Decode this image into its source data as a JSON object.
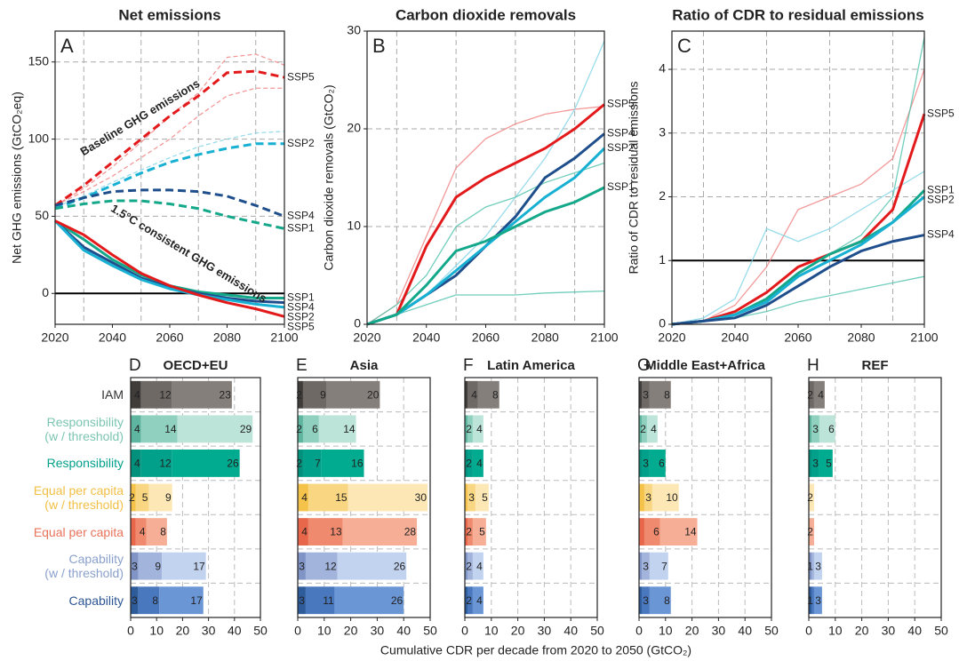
{
  "chart_data": [
    {
      "type": "line",
      "panel": "A",
      "title": "Net emissions",
      "ylabel": "Net GHG emissions (GtCO₂eq)",
      "x": [
        2020,
        2030,
        2040,
        2050,
        2060,
        2070,
        2080,
        2090,
        2100
      ],
      "xlim": [
        2020,
        2100
      ],
      "xticks": [
        2020,
        2040,
        2060,
        2080,
        2100
      ],
      "ylim": [
        -20,
        170
      ],
      "yticks": [
        0,
        50,
        100,
        150
      ],
      "grid": true,
      "hline": 0,
      "annotations": [
        "Baseline GHG emissions",
        "1.5°C consistent GHG emissions"
      ],
      "series": [
        {
          "color": "#f08080",
          "dash": true,
          "thin": true,
          "values": [
            57,
            68,
            82,
            98,
            115,
            130,
            153,
            155,
            148
          ]
        },
        {
          "color": "#f08080",
          "dash": true,
          "thin": true,
          "values": [
            57,
            66,
            76,
            88,
            100,
            115,
            128,
            133,
            133
          ]
        },
        {
          "color": "#7fd3e6",
          "dash": true,
          "thin": true,
          "values": [
            56,
            63,
            72,
            80,
            88,
            95,
            100,
            104,
            105
          ]
        },
        {
          "name": "SSP5",
          "color": "#e31a1c",
          "dash": true,
          "values": [
            57,
            70,
            85,
            100,
            115,
            128,
            143,
            144,
            140
          ]
        },
        {
          "name": "SSP2",
          "color": "#17b0d3",
          "dash": true,
          "values": [
            55,
            62,
            70,
            78,
            85,
            90,
            94,
            97,
            97
          ]
        },
        {
          "name": "SSP4",
          "color": "#1f4e8c",
          "dash": true,
          "values": [
            57,
            62,
            66,
            67,
            67,
            66,
            63,
            57,
            50
          ]
        },
        {
          "name": "SSP1",
          "color": "#14a88a",
          "dash": true,
          "values": [
            55,
            58,
            60,
            60,
            58,
            55,
            50,
            46,
            42
          ]
        },
        {
          "name": "SSP1",
          "color": "#14a88a",
          "values": [
            47,
            35,
            22,
            12,
            5,
            1,
            -1,
            -3,
            -3
          ]
        },
        {
          "name": "SSP4",
          "color": "#1f4e8c",
          "values": [
            47,
            30,
            20,
            10,
            4,
            0,
            -3,
            -5,
            -6
          ]
        },
        {
          "name": "SSP2",
          "color": "#17b0d3",
          "values": [
            47,
            28,
            18,
            9,
            3,
            -1,
            -4,
            -7,
            -9
          ]
        },
        {
          "name": "SSP5",
          "color": "#e31a1c",
          "values": [
            47,
            38,
            25,
            13,
            5,
            -1,
            -6,
            -10,
            -15
          ]
        }
      ]
    },
    {
      "type": "line",
      "panel": "B",
      "title": "Carbon dioxide removals",
      "ylabel": "Carbon dioxide removals (GtCO₂)",
      "x": [
        2020,
        2030,
        2040,
        2050,
        2060,
        2070,
        2080,
        2090,
        2100
      ],
      "xlim": [
        2020,
        2100
      ],
      "xticks": [
        2020,
        2040,
        2060,
        2080,
        2100
      ],
      "ylim": [
        0,
        30
      ],
      "yticks": [
        0,
        10,
        20,
        30
      ],
      "grid": true,
      "series": [
        {
          "color": "#f08080",
          "thin": true,
          "values": [
            0,
            2,
            9,
            16,
            19,
            20.5,
            21.5,
            22,
            22.3
          ]
        },
        {
          "color": "#7fd3e6",
          "thin": true,
          "values": [
            0,
            1,
            3,
            6,
            9,
            13,
            17,
            22,
            29
          ]
        },
        {
          "color": "#4fc2ab",
          "thin": true,
          "values": [
            0,
            1,
            2,
            3,
            3,
            3,
            3.2,
            3.3,
            3.4
          ]
        },
        {
          "color": "#4fc2ab",
          "thin": true,
          "values": [
            0,
            2,
            5,
            10,
            12,
            13,
            14.5,
            15.5,
            16.5
          ]
        },
        {
          "name": "SSP5",
          "color": "#e31a1c",
          "values": [
            0,
            1,
            8,
            13,
            15,
            16.5,
            18,
            20,
            22.5
          ]
        },
        {
          "name": "SSP4",
          "color": "#1f4e8c",
          "values": [
            0,
            1,
            3,
            5,
            8,
            11,
            15,
            17,
            19.5
          ]
        },
        {
          "name": "SSP2",
          "color": "#17b0d3",
          "values": [
            0,
            1,
            3,
            5.5,
            8,
            10.5,
            13,
            15,
            18
          ]
        },
        {
          "name": "SSP1",
          "color": "#14a88a",
          "values": [
            0,
            1,
            4,
            7.5,
            8.5,
            10,
            11.5,
            12.5,
            14
          ]
        }
      ]
    },
    {
      "type": "line",
      "panel": "C",
      "title": "Ratio of CDR to residual emissions",
      "ylabel": "Ratio of CDR to residual emissions",
      "x": [
        2020,
        2030,
        2040,
        2050,
        2060,
        2070,
        2080,
        2090,
        2100
      ],
      "xlim": [
        2020,
        2100
      ],
      "xticks": [
        2020,
        2040,
        2060,
        2080,
        2100
      ],
      "ylim": [
        0,
        4.6
      ],
      "yticks": [
        0,
        1,
        2,
        3,
        4
      ],
      "grid": true,
      "hline": 1,
      "series": [
        {
          "color": "#f08080",
          "thin": true,
          "values": [
            0,
            0.05,
            0.3,
            0.9,
            1.8,
            2.0,
            2.2,
            2.6,
            4.0
          ]
        },
        {
          "color": "#4fc2ab",
          "thin": true,
          "values": [
            0,
            0.05,
            0.2,
            0.5,
            0.9,
            1.1,
            1.4,
            2.0,
            4.5
          ]
        },
        {
          "color": "#4fc2ab",
          "thin": true,
          "values": [
            0,
            0.05,
            0.1,
            0.2,
            0.35,
            0.45,
            0.55,
            0.65,
            0.75
          ]
        },
        {
          "color": "#7fd3e6",
          "thin": true,
          "values": [
            0,
            0.1,
            0.4,
            1.5,
            1.3,
            1.5,
            1.8,
            2.1,
            2.4
          ]
        },
        {
          "name": "SSP5",
          "color": "#e31a1c",
          "values": [
            0,
            0.05,
            0.2,
            0.5,
            0.9,
            1.1,
            1.3,
            1.8,
            3.3
          ]
        },
        {
          "name": "SSP1",
          "color": "#14a88a",
          "values": [
            0,
            0.05,
            0.15,
            0.4,
            0.8,
            1.1,
            1.3,
            1.6,
            2.1
          ]
        },
        {
          "name": "SSP2",
          "color": "#17b0d3",
          "values": [
            0,
            0.05,
            0.15,
            0.35,
            0.75,
            1.0,
            1.25,
            1.6,
            2.0
          ]
        },
        {
          "name": "SSP4",
          "color": "#1f4e8c",
          "values": [
            0,
            0.05,
            0.1,
            0.3,
            0.6,
            0.9,
            1.15,
            1.3,
            1.4
          ]
        }
      ]
    },
    {
      "type": "hbar",
      "panel": "D",
      "title": "OECD+EU",
      "xlim": [
        0,
        50
      ],
      "xticks": [
        0,
        10,
        20,
        30,
        40,
        50
      ],
      "grid": true,
      "categories": [
        "IAM",
        "Responsibility\n(w / threshold)",
        "Responsibility",
        "Equal per capita\n(w / threshold)",
        "Equal per capita",
        "Capability\n(w / threshold)",
        "Capability"
      ],
      "label_colors": [
        "#333333",
        "#7cc5b2",
        "#00a08a",
        "#f2bf45",
        "#e8735a",
        "#8aa0cc",
        "#2c5693"
      ],
      "category_colors": [
        [
          "#3f3c3a",
          "#6f6966",
          "#857f7b"
        ],
        [
          "#5eb5a0",
          "#8fd0bf",
          "#bde4d9"
        ],
        [
          "#00907c",
          "#00a08a",
          "#00ab90"
        ],
        [
          "#f5c24a",
          "#f9d681",
          "#fce7b5"
        ],
        [
          "#e8664a",
          "#f08a6e",
          "#f6ae96"
        ],
        [
          "#8095c6",
          "#a3b4dc",
          "#c2d3ef"
        ],
        [
          "#2e5b9a",
          "#4a78bf",
          "#6b96d6"
        ]
      ],
      "series": [
        {
          "values": [
            4,
            4,
            4,
            2,
            2,
            3,
            3
          ],
          "value_labels": [
            "4",
            "4",
            "4",
            "2",
            null,
            "3",
            "3"
          ]
        },
        {
          "values": [
            12,
            14,
            12,
            5,
            4,
            9,
            8
          ],
          "value_labels": [
            "12",
            "14",
            "12",
            "5",
            "4",
            "9",
            "8"
          ]
        },
        {
          "values": [
            23,
            29,
            26,
            9,
            8,
            17,
            17
          ],
          "value_labels": [
            "23",
            "29",
            "26",
            "9",
            "8",
            "17",
            "17"
          ]
        }
      ]
    },
    {
      "type": "hbar",
      "panel": "E",
      "title": "Asia",
      "xlim": [
        0,
        50
      ],
      "xticks": [
        0,
        10,
        20,
        30,
        40,
        50
      ],
      "grid": true,
      "categories": [
        null,
        null,
        null,
        null,
        null,
        null,
        null
      ],
      "category_colors": [
        [
          "#3f3c3a",
          "#6f6966",
          "#857f7b"
        ],
        [
          "#5eb5a0",
          "#8fd0bf",
          "#bde4d9"
        ],
        [
          "#00907c",
          "#00a08a",
          "#00ab90"
        ],
        [
          "#f5c24a",
          "#f9d681",
          "#fce7b5"
        ],
        [
          "#e8664a",
          "#f08a6e",
          "#f6ae96"
        ],
        [
          "#8095c6",
          "#a3b4dc",
          "#c2d3ef"
        ],
        [
          "#2e5b9a",
          "#4a78bf",
          "#6b96d6"
        ]
      ],
      "series": [
        {
          "values": [
            2,
            2,
            2,
            4,
            4,
            3,
            3
          ],
          "value_labels": [
            "2",
            "2",
            "2",
            "4",
            "4",
            "3",
            "3"
          ]
        },
        {
          "values": [
            9,
            6,
            7,
            15,
            13,
            12,
            11
          ],
          "value_labels": [
            "9",
            "6",
            "7",
            "15",
            "13",
            "12",
            "11"
          ]
        },
        {
          "values": [
            20,
            14,
            16,
            30,
            28,
            26,
            26
          ],
          "value_labels": [
            "20",
            "14",
            "16",
            "30",
            "28",
            "26",
            "26"
          ]
        }
      ]
    },
    {
      "type": "hbar",
      "panel": "F",
      "title": "Latin America",
      "xlim": [
        0,
        50
      ],
      "xticks": [
        0,
        10,
        20,
        30,
        40,
        50
      ],
      "grid": true,
      "categories": [
        null,
        null,
        null,
        null,
        null,
        null,
        null
      ],
      "category_colors": [
        [
          "#3f3c3a",
          "#6f6966",
          "#857f7b"
        ],
        [
          "#5eb5a0",
          "#8fd0bf",
          "#bde4d9"
        ],
        [
          "#00907c",
          "#00a08a",
          "#00ab90"
        ],
        [
          "#f5c24a",
          "#f9d681",
          "#fce7b5"
        ],
        [
          "#e8664a",
          "#f08a6e",
          "#f6ae96"
        ],
        [
          "#8095c6",
          "#a3b4dc",
          "#c2d3ef"
        ],
        [
          "#2e5b9a",
          "#4a78bf",
          "#6b96d6"
        ]
      ],
      "series": [
        {
          "values": [
            1,
            1,
            1,
            1,
            1,
            1,
            1
          ],
          "value_labels": [
            null,
            null,
            null,
            null,
            null,
            null,
            null
          ]
        },
        {
          "values": [
            4,
            2,
            2,
            3,
            2,
            2,
            2
          ],
          "value_labels": [
            "4",
            "2",
            "2",
            "3",
            "2",
            "2",
            "2"
          ]
        },
        {
          "values": [
            8,
            4,
            4,
            5,
            5,
            4,
            4
          ],
          "value_labels": [
            "8",
            "4",
            "4",
            "5",
            "5",
            "4",
            "4"
          ]
        }
      ]
    },
    {
      "type": "hbar",
      "panel": "G",
      "title": "Middle East+Africa",
      "xlim": [
        0,
        50
      ],
      "xticks": [
        0,
        10,
        20,
        30,
        40,
        50
      ],
      "grid": true,
      "categories": [
        null,
        null,
        null,
        null,
        null,
        null,
        null
      ],
      "category_colors": [
        [
          "#3f3c3a",
          "#6f6966",
          "#857f7b"
        ],
        [
          "#5eb5a0",
          "#8fd0bf",
          "#bde4d9"
        ],
        [
          "#00907c",
          "#00a08a",
          "#00ab90"
        ],
        [
          "#f5c24a",
          "#f9d681",
          "#fce7b5"
        ],
        [
          "#e8664a",
          "#f08a6e",
          "#f6ae96"
        ],
        [
          "#8095c6",
          "#a3b4dc",
          "#c2d3ef"
        ],
        [
          "#2e5b9a",
          "#4a78bf",
          "#6b96d6"
        ]
      ],
      "series": [
        {
          "values": [
            1,
            1,
            1,
            2,
            2,
            1,
            1
          ],
          "value_labels": [
            null,
            null,
            null,
            null,
            null,
            null,
            null
          ]
        },
        {
          "values": [
            3,
            2,
            3,
            3,
            6,
            3,
            3
          ],
          "value_labels": [
            "3",
            "2",
            "3",
            "3",
            "6",
            "3",
            "3"
          ]
        },
        {
          "values": [
            8,
            4,
            6,
            10,
            14,
            7,
            8
          ],
          "value_labels": [
            "8",
            "4",
            "6",
            "10",
            "14",
            "7",
            "8"
          ]
        }
      ]
    },
    {
      "type": "hbar",
      "panel": "H",
      "title": "REF",
      "xlim": [
        0,
        50
      ],
      "xticks": [
        0,
        10,
        20,
        30,
        40,
        50
      ],
      "grid": true,
      "categories": [
        null,
        null,
        null,
        null,
        null,
        null,
        null
      ],
      "category_colors": [
        [
          "#3f3c3a",
          "#6f6966",
          "#857f7b"
        ],
        [
          "#5eb5a0",
          "#8fd0bf",
          "#bde4d9"
        ],
        [
          "#00907c",
          "#00a08a",
          "#00ab90"
        ],
        [
          "#f5c24a",
          "#f9d681",
          "#fce7b5"
        ],
        [
          "#e8664a",
          "#f08a6e",
          "#f6ae96"
        ],
        [
          "#8095c6",
          "#a3b4dc",
          "#c2d3ef"
        ],
        [
          "#2e5b9a",
          "#4a78bf",
          "#6b96d6"
        ]
      ],
      "series": [
        {
          "values": [
            0,
            1,
            1,
            0,
            0,
            1,
            1
          ],
          "value_labels": [
            null,
            null,
            null,
            null,
            null,
            null,
            null
          ]
        },
        {
          "values": [
            2,
            3,
            3,
            0,
            0,
            1,
            1
          ],
          "value_labels": [
            "2",
            "3",
            "3",
            null,
            null,
            "1",
            "1"
          ]
        },
        {
          "values": [
            4,
            6,
            5,
            2,
            2,
            3,
            3
          ],
          "value_labels": [
            "4",
            "6",
            "5",
            "2",
            "2",
            "3",
            "3"
          ]
        }
      ]
    }
  ],
  "shared_xlabel": "Cumulative CDR per decade from 2020 to 2050 (GtCO₂)"
}
